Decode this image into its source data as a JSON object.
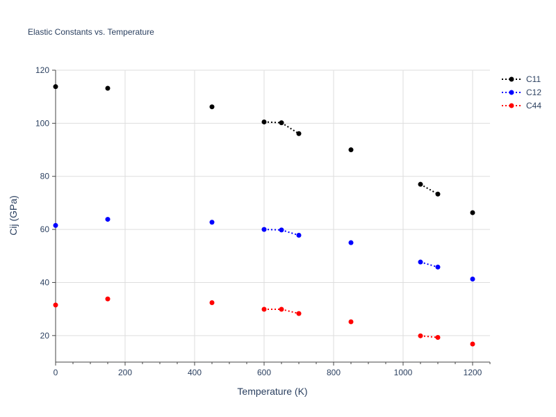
{
  "chart_data": {
    "type": "scatter",
    "title": "Elastic Constants vs. Temperature",
    "xlabel": "Temperature (K)",
    "ylabel": "Cij (GPa)",
    "xlim": [
      0,
      1250
    ],
    "ylim": [
      10,
      120
    ],
    "x_ticks": [
      "0",
      "200",
      "400",
      "600",
      "800",
      "1000",
      "1200"
    ],
    "y_ticks": [
      "20",
      "40",
      "60",
      "80",
      "100",
      "120"
    ],
    "grid": true,
    "legend_position": "top-right",
    "line_style": "dotted",
    "x": [
      0,
      150,
      450,
      600,
      650,
      700,
      850,
      1050,
      1100,
      1200
    ],
    "connected_segments": [
      [
        3,
        4,
        5
      ],
      [
        7,
        8
      ]
    ],
    "series": [
      {
        "name": "C11",
        "color": "#000000",
        "values": [
          113.8,
          113.2,
          106.2,
          100.5,
          100.2,
          96.1,
          90.0,
          77.0,
          73.3,
          66.3
        ]
      },
      {
        "name": "C12",
        "color": "#0000ff",
        "values": [
          61.5,
          63.8,
          62.7,
          60.0,
          59.8,
          57.8,
          55.0,
          47.7,
          45.8,
          41.3
        ]
      },
      {
        "name": "C44",
        "color": "#ff0000",
        "values": [
          31.5,
          33.8,
          32.4,
          29.9,
          29.9,
          28.3,
          25.2,
          19.9,
          19.3,
          16.8
        ]
      }
    ]
  }
}
